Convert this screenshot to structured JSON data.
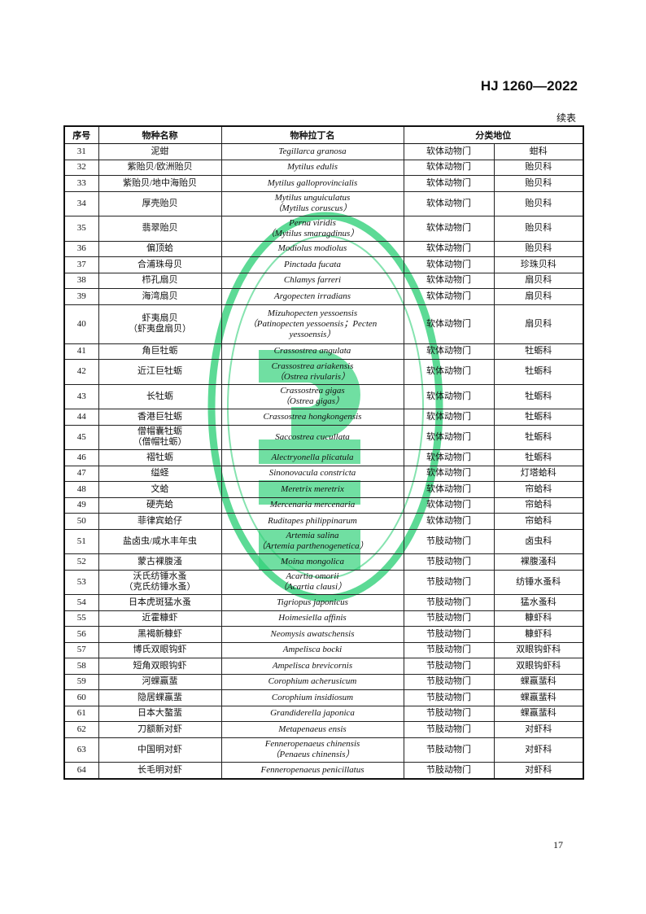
{
  "header": {
    "standard_code": "HJ 1260—2022",
    "continued": "续表"
  },
  "table": {
    "columns": [
      "序号",
      "物种名称",
      "物种拉丁名",
      "分类地位"
    ],
    "rows": [
      {
        "no": "31",
        "name": "泥蚶",
        "latin": "Tegillarca granosa",
        "phylum": "软体动物门",
        "family": "蚶科"
      },
      {
        "no": "32",
        "name": "紫贻贝/欧洲贻贝",
        "latin": "Mytilus edulis",
        "phylum": "软体动物门",
        "family": "贻贝科"
      },
      {
        "no": "33",
        "name": "紫贻贝/地中海贻贝",
        "latin": "Mytilus galloprovincialis",
        "phylum": "软体动物门",
        "family": "贻贝科"
      },
      {
        "no": "34",
        "name": "厚壳贻贝",
        "latin": "Mytilus unguiculatus",
        "latin2": "（Mytilus coruscus）",
        "phylum": "软体动物门",
        "family": "贻贝科"
      },
      {
        "no": "35",
        "name": "翡翠贻贝",
        "latin": "Perna viridis",
        "latin2": "（Mytilus smaragdinus）",
        "phylum": "软体动物门",
        "family": "贻贝科"
      },
      {
        "no": "36",
        "name": "偏顶蛤",
        "latin": "Modiolus modiolus",
        "phylum": "软体动物门",
        "family": "贻贝科"
      },
      {
        "no": "37",
        "name": "合浦珠母贝",
        "latin": "Pinctada fucata",
        "phylum": "软体动物门",
        "family": "珍珠贝科"
      },
      {
        "no": "38",
        "name": "栉孔扇贝",
        "latin": "Chlamys farreri",
        "phylum": "软体动物门",
        "family": "扇贝科"
      },
      {
        "no": "39",
        "name": "海湾扇贝",
        "latin": "Argopecten irradians",
        "phylum": "软体动物门",
        "family": "扇贝科"
      },
      {
        "no": "40",
        "name": "虾夷扇贝",
        "name2": "（虾夷盘扇贝）",
        "latin": "Mizuhopecten yessoensis",
        "latin2": "（Patinopecten yessoensis；Pecten",
        "latin3": "yessoensis）",
        "phylum": "软体动物门",
        "family": "扇贝科"
      },
      {
        "no": "41",
        "name": "角巨牡蛎",
        "latin": "Crassostrea angulata",
        "phylum": "软体动物门",
        "family": "牡蛎科"
      },
      {
        "no": "42",
        "name": "近江巨牡蛎",
        "latin": "Crassostrea ariakensis",
        "latin2": "（Ostrea rivularis）",
        "phylum": "软体动物门",
        "family": "牡蛎科"
      },
      {
        "no": "43",
        "name": "长牡蛎",
        "latin": "Crassostrea gigas",
        "latin2": "（Ostrea gigas）",
        "phylum": "软体动物门",
        "family": "牡蛎科"
      },
      {
        "no": "44",
        "name": "香港巨牡蛎",
        "latin": "Crassostrea hongkongensis",
        "phylum": "软体动物门",
        "family": "牡蛎科"
      },
      {
        "no": "45",
        "name": "僧帽囊牡蛎",
        "name2": "（僧帽牡蛎）",
        "latin": "Saccostrea cucullata",
        "phylum": "软体动物门",
        "family": "牡蛎科"
      },
      {
        "no": "46",
        "name": "褶牡蛎",
        "latin": "Alectryonella plicatula",
        "phylum": "软体动物门",
        "family": "牡蛎科"
      },
      {
        "no": "47",
        "name": "缢蛏",
        "latin": "Sinonovacula constricta",
        "phylum": "软体动物门",
        "family": "灯塔蛤科"
      },
      {
        "no": "48",
        "name": "文蛤",
        "latin": "Meretrix meretrix",
        "phylum": "软体动物门",
        "family": "帘蛤科"
      },
      {
        "no": "49",
        "name": "硬壳蛤",
        "latin": "Mercenaria mercenaria",
        "phylum": "软体动物门",
        "family": "帘蛤科"
      },
      {
        "no": "50",
        "name": "菲律宾蛤仔",
        "latin": "Ruditapes philippinarum",
        "phylum": "软体动物门",
        "family": "帘蛤科"
      },
      {
        "no": "51",
        "name": "盐卤虫/咸水丰年虫",
        "latin": "Artemia salina",
        "latin2": "（Artemia parthenogenetica）",
        "phylum": "节肢动物门",
        "family": "卤虫科"
      },
      {
        "no": "52",
        "name": "蒙古裸腹溞",
        "latin": "Moina mongolica",
        "phylum": "节肢动物门",
        "family": "裸腹溞科"
      },
      {
        "no": "53",
        "name": "沃氏纺锤水蚤",
        "name2": "（克氏纺锤水蚤）",
        "latin": "Acartia omorii",
        "latin2": "（Acartia clausi）",
        "phylum": "节肢动物门",
        "family": "纺锤水蚤科"
      },
      {
        "no": "54",
        "name": "日本虎斑猛水蚤",
        "latin": "Tigriopus japonicus",
        "phylum": "节肢动物门",
        "family": "猛水蚤科"
      },
      {
        "no": "55",
        "name": "近霍糠虾",
        "latin": "Hoimesiella affinis",
        "phylum": "节肢动物门",
        "family": "糠虾科"
      },
      {
        "no": "56",
        "name": "黑褐新糠虾",
        "latin": "Neomysis awatschensis",
        "phylum": "节肢动物门",
        "family": "糠虾科"
      },
      {
        "no": "57",
        "name": "博氏双眼钩虾",
        "latin": "Ampelisca bocki",
        "phylum": "节肢动物门",
        "family": "双眼钩虾科"
      },
      {
        "no": "58",
        "name": "短角双眼钩虾",
        "latin": "Ampelisca brevicornis",
        "phylum": "节肢动物门",
        "family": "双眼钩虾科"
      },
      {
        "no": "59",
        "name": "河蜾蠃蜚",
        "latin": "Corophium acherusicum",
        "phylum": "节肢动物门",
        "family": "蜾蠃蜚科"
      },
      {
        "no": "60",
        "name": "隐居蜾蠃蜚",
        "latin": "Corophium insidiosum",
        "phylum": "节肢动物门",
        "family": "蜾蠃蜚科"
      },
      {
        "no": "61",
        "name": "日本大螯蜚",
        "latin": "Grandiderella japonica",
        "phylum": "节肢动物门",
        "family": "蜾蠃蜚科"
      },
      {
        "no": "62",
        "name": "刀额新对虾",
        "latin": "Metapenaeus ensis",
        "phylum": "节肢动物门",
        "family": "对虾科"
      },
      {
        "no": "63",
        "name": "中国明对虾",
        "latin": "Fenneropenaeus chinensis",
        "latin2": "（Penaeus chinensis）",
        "phylum": "节肢动物门",
        "family": "对虾科"
      },
      {
        "no": "64",
        "name": "长毛明对虾",
        "latin": "Fenneropenaeus penicillatus",
        "phylum": "节肢动物门",
        "family": "对虾科"
      }
    ]
  },
  "footer": {
    "page_number": "17"
  },
  "watermark": {
    "text": "Ministry of Ecology and Environment",
    "color": "#2ecc71"
  }
}
